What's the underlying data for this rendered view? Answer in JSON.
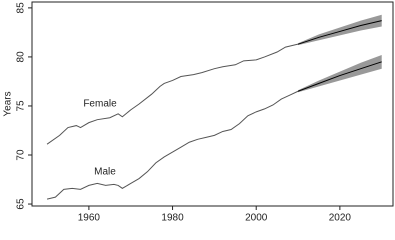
{
  "chart_data": {
    "type": "line",
    "y_label": "Years",
    "xlim": [
      1946.4,
      2032.7
    ],
    "ylim": [
      64.8,
      85.6
    ],
    "xticks": [
      1960,
      1980,
      2000,
      2020
    ],
    "yticks": [
      65,
      70,
      75,
      80,
      85
    ],
    "series": [
      {
        "name": "Female",
        "color": "#555555",
        "x": [
          1950,
          1953,
          1955,
          1957,
          1958,
          1960,
          1962,
          1965,
          1967,
          1968,
          1970,
          1972,
          1975,
          1977,
          1978,
          1980,
          1982,
          1985,
          1987,
          1990,
          1992,
          1995,
          1997,
          2000,
          2002,
          2005,
          2007,
          2010
        ],
        "values": [
          71.1,
          72,
          72.8,
          73,
          72.8,
          73.3,
          73.6,
          73.8,
          74.2,
          73.9,
          74.6,
          75.2,
          76.2,
          77,
          77.3,
          77.6,
          78,
          78.2,
          78.4,
          78.8,
          79,
          79.2,
          79.6,
          79.7,
          80,
          80.5,
          81,
          81.3
        ],
        "projection": {
          "color": "#000000",
          "band_color": "#999999",
          "x": [
            2010,
            2015,
            2020,
            2025,
            2030
          ],
          "values": [
            81.3,
            82,
            82.6,
            83.2,
            83.7
          ],
          "lower": [
            81.2,
            81.7,
            82.2,
            82.7,
            83.1
          ],
          "upper": [
            81.4,
            82.3,
            83,
            83.7,
            84.3
          ]
        }
      },
      {
        "name": "Male",
        "color": "#555555",
        "x": [
          1950,
          1952,
          1954,
          1956,
          1958,
          1960,
          1962,
          1964,
          1966,
          1967,
          1968,
          1970,
          1972,
          1974,
          1976,
          1978,
          1980,
          1982,
          1984,
          1986,
          1988,
          1990,
          1992,
          1994,
          1996,
          1998,
          2000,
          2002,
          2004,
          2006,
          2008,
          2010
        ],
        "values": [
          65.5,
          65.7,
          66.5,
          66.6,
          66.5,
          66.9,
          67.1,
          66.9,
          67,
          66.9,
          66.6,
          67.1,
          67.6,
          68.3,
          69.2,
          69.8,
          70.3,
          70.8,
          71.3,
          71.6,
          71.8,
          72,
          72.4,
          72.6,
          73.2,
          74,
          74.4,
          74.7,
          75.1,
          75.7,
          76.1,
          76.5
        ],
        "projection": {
          "color": "#000000",
          "band_color": "#999999",
          "x": [
            2010,
            2015,
            2020,
            2025,
            2030
          ],
          "values": [
            76.5,
            77.3,
            78.1,
            78.8,
            79.5
          ],
          "lower": [
            76.4,
            77,
            77.6,
            78.2,
            78.8
          ],
          "upper": [
            76.6,
            77.6,
            78.5,
            79.4,
            80.2
          ]
        }
      }
    ]
  }
}
